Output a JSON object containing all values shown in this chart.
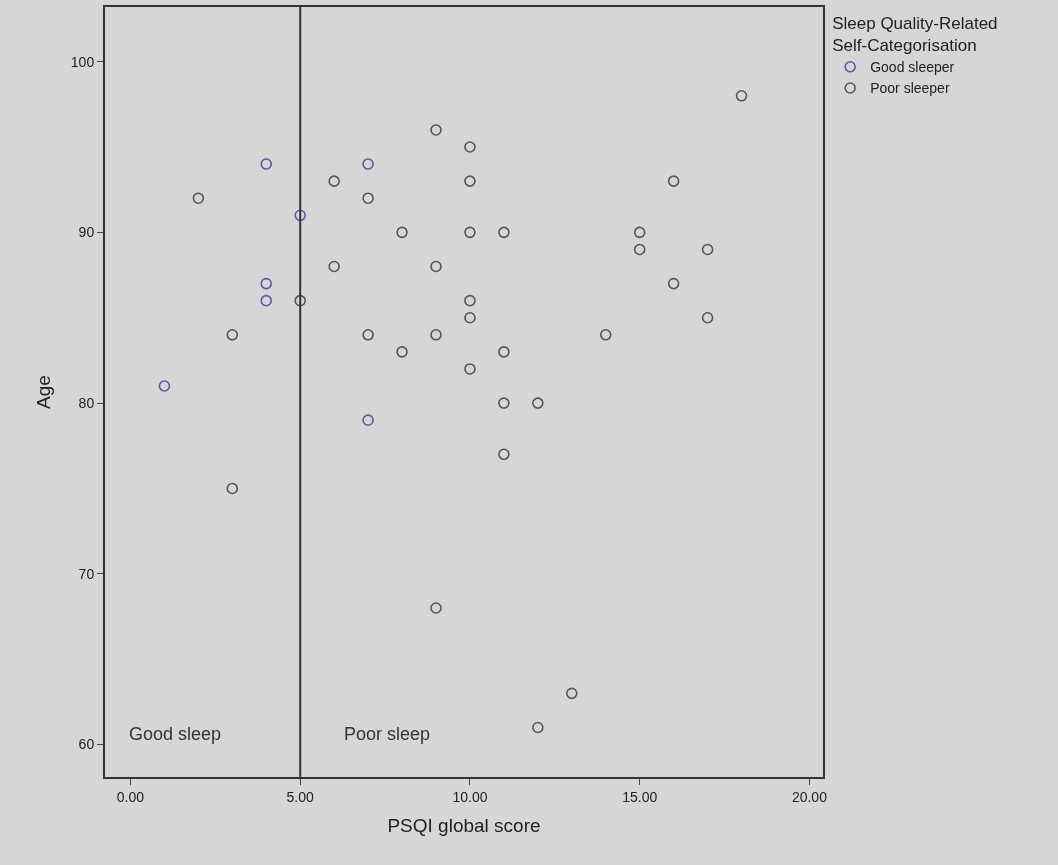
{
  "chart_data": {
    "type": "scatter",
    "xlabel": "PSQI global score",
    "ylabel": "Age",
    "legend_title": "Sleep Quality-Related\nSelf-Categorisation",
    "legend": "top right",
    "grid": false,
    "marker": "circle",
    "xlim": [
      -0.75,
      20.4
    ],
    "ylim": [
      58.1,
      103.2
    ],
    "xticks": [
      {
        "value": 0,
        "label": "0.00"
      },
      {
        "value": 5,
        "label": "5.00"
      },
      {
        "value": 10,
        "label": "10.00"
      },
      {
        "value": 15,
        "label": "15.00"
      },
      {
        "value": 20,
        "label": "20.00"
      }
    ],
    "yticks": [
      60,
      70,
      80,
      90,
      100
    ],
    "ref_lines": [
      {
        "axis": "x",
        "value": 5,
        "color": "#333333"
      }
    ],
    "annotations": [
      "Good sleep",
      "Poor sleep"
    ],
    "series": [
      {
        "name": "Good sleeper",
        "color": "#5a5aa8",
        "x": [
          1,
          4,
          4,
          4,
          5,
          7,
          7
        ],
        "values": [
          81,
          94,
          87,
          86,
          91,
          94,
          79
        ]
      },
      {
        "name": "Poor sleeper",
        "color": "#555555",
        "x": [
          2,
          3,
          3,
          5,
          6,
          6,
          7,
          7,
          8,
          8,
          9,
          9,
          9,
          9,
          10,
          10,
          10,
          10,
          10,
          10,
          11,
          11,
          11,
          11,
          12,
          12,
          13,
          14,
          15,
          15,
          16,
          16,
          17,
          17,
          18
        ],
        "values": [
          92,
          84,
          75,
          86,
          93,
          88,
          92,
          84,
          90,
          83,
          96,
          88,
          84,
          68,
          95,
          93,
          90,
          86,
          85,
          82,
          90,
          83,
          80,
          77,
          80,
          61,
          63,
          84,
          90,
          89,
          93,
          87,
          89,
          85,
          98
        ]
      }
    ]
  }
}
